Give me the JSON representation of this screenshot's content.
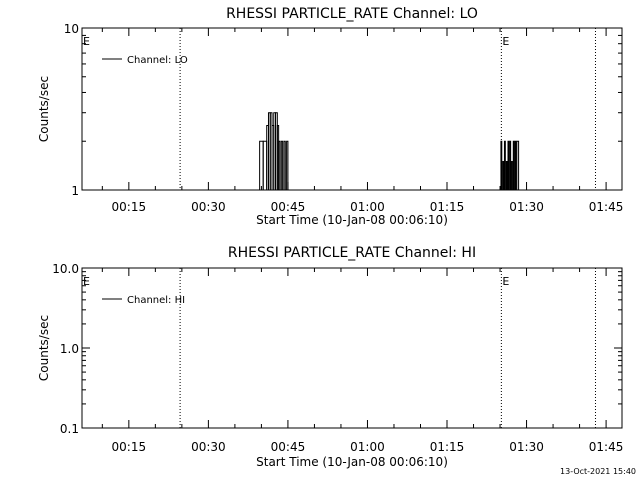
{
  "chart_data": [
    {
      "type": "line",
      "title": "RHESSI PARTICLE_RATE Channel: LO",
      "xlabel": "Start Time (10-Jan-08 00:06:10)",
      "ylabel": "Counts/sec",
      "y_scale": "log",
      "ylim": [
        1,
        10
      ],
      "y_ticks": [
        "1",
        "10"
      ],
      "xlim": [
        "00:06:10",
        "01:48:00"
      ],
      "x_ticks": [
        "00:15",
        "00:30",
        "00:45",
        "01:00",
        "01:15",
        "01:30",
        "01:45"
      ],
      "grid": false,
      "legend_position": "top-left",
      "event_marker_label": "E",
      "event_markers": [
        {
          "time": "00:06:10",
          "label": "E"
        },
        {
          "time": "00:24:40",
          "label": ""
        },
        {
          "time": "01:25:15",
          "label": "E"
        },
        {
          "time": "01:43:00",
          "label": ""
        }
      ],
      "series": [
        {
          "name": "Channel: LO",
          "x": [
            "00:39:00",
            "00:39:40",
            "00:40:20",
            "00:41:00",
            "00:41:20",
            "00:41:40",
            "00:42:00",
            "00:42:20",
            "00:42:40",
            "00:43:00",
            "00:43:15",
            "00:43:30",
            "00:43:45",
            "00:44:00",
            "00:44:15",
            "00:44:30",
            "00:44:45",
            "00:45:00",
            "00:45:20",
            "01:25:00",
            "01:25:10",
            "01:25:20",
            "01:25:30",
            "01:25:40",
            "01:25:50",
            "01:26:00",
            "01:26:10",
            "01:26:20",
            "01:26:30",
            "01:26:40",
            "01:26:50",
            "01:27:00",
            "01:27:10",
            "01:27:20",
            "01:27:30",
            "01:27:40",
            "01:27:50",
            "01:28:00",
            "01:28:10",
            "01:28:30"
          ],
          "values": [
            1,
            2,
            2,
            2.5,
            3,
            3,
            2.5,
            3,
            3,
            2.5,
            2,
            1,
            2,
            1,
            2,
            1,
            2,
            1,
            1,
            1,
            2,
            1,
            1.5,
            1,
            2,
            1,
            1.5,
            1,
            2,
            1,
            2,
            1,
            1.5,
            1,
            2,
            1,
            2,
            1,
            2,
            1
          ]
        }
      ]
    },
    {
      "type": "line",
      "title": "RHESSI PARTICLE_RATE Channel: HI",
      "xlabel": "Start Time (10-Jan-08 00:06:10)",
      "ylabel": "Counts/sec",
      "y_scale": "log",
      "ylim": [
        0.1,
        10
      ],
      "y_ticks": [
        "0.1",
        "1.0",
        "10.0"
      ],
      "xlim": [
        "00:06:10",
        "01:48:00"
      ],
      "x_ticks": [
        "00:15",
        "00:30",
        "00:45",
        "01:00",
        "01:15",
        "01:30",
        "01:45"
      ],
      "grid": false,
      "legend_position": "top-left",
      "event_marker_label": "E",
      "event_markers": [
        {
          "time": "00:06:10",
          "label": "E"
        },
        {
          "time": "00:24:40",
          "label": ""
        },
        {
          "time": "01:25:15",
          "label": "E"
        },
        {
          "time": "01:43:00",
          "label": ""
        }
      ],
      "series": [
        {
          "name": "Channel: HI",
          "x": [],
          "values": []
        }
      ]
    }
  ],
  "footer": {
    "timestamp": "13-Oct-2021 15:40"
  }
}
